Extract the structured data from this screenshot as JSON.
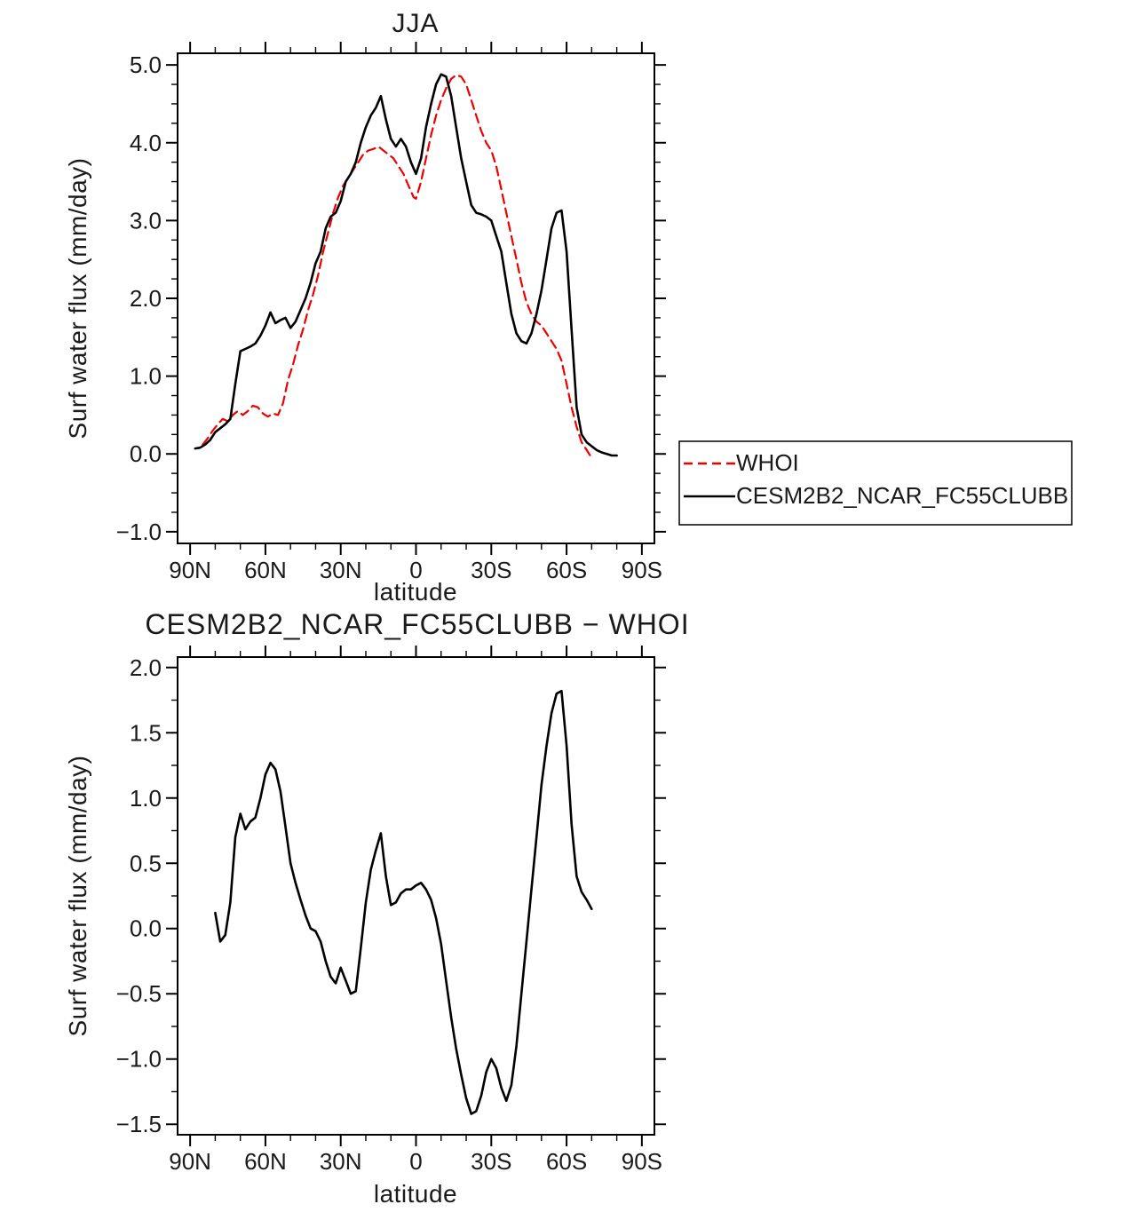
{
  "page": {
    "background": "#ffffff"
  },
  "legend": {
    "position": "right-of-top-chart",
    "entries": [
      {
        "label": "WHOI",
        "color": "#ee0000",
        "style": "dashed"
      },
      {
        "label": "CESM2B2_NCAR_FC55CLUBB",
        "color": "#000000",
        "style": "solid"
      }
    ]
  },
  "chart_data": [
    {
      "type": "line",
      "title": "JJA",
      "xlabel": "latitude",
      "ylabel": "Surf water flux (mm/day)",
      "x_axis": {
        "domain_note": "latitude, 90N (left) to 90S (right)",
        "major_ticks": [
          90,
          60,
          30,
          0,
          -30,
          -60,
          -90
        ],
        "tick_labels": [
          "90N",
          "60N",
          "30N",
          "0",
          "30S",
          "60S",
          "90S"
        ],
        "minor_step": 10
      },
      "y_axis": {
        "min": -1.0,
        "max": 5.0,
        "major_ticks": [
          -1.0,
          0.0,
          1.0,
          2.0,
          3.0,
          4.0,
          5.0
        ],
        "tick_labels": [
          "−1.0",
          "0.0",
          "1.0",
          "2.0",
          "3.0",
          "4.0",
          "5.0"
        ],
        "minor_step": 0.25
      },
      "series": [
        {
          "name": "WHOI",
          "color": "#ee0000",
          "style": "dashed",
          "x": [
            85,
            83,
            81,
            79,
            77,
            75,
            73,
            71,
            69,
            67,
            65,
            63,
            61,
            59,
            57,
            55,
            53,
            51,
            49,
            47,
            45,
            43,
            41,
            39,
            37,
            35,
            33,
            31,
            29,
            27,
            25,
            23,
            21,
            19,
            17,
            15,
            13,
            11,
            9,
            7,
            5,
            3,
            1,
            0,
            -2,
            -4,
            -6,
            -8,
            -10,
            -12,
            -14,
            -16,
            -18,
            -20,
            -22,
            -24,
            -26,
            -28,
            -30,
            -32,
            -34,
            -36,
            -38,
            -40,
            -42,
            -44,
            -46,
            -48,
            -50,
            -52,
            -54,
            -56,
            -58,
            -60,
            -62,
            -64,
            -66,
            -68,
            -70
          ],
          "y": [
            0.12,
            0.2,
            0.3,
            0.38,
            0.45,
            0.42,
            0.5,
            0.55,
            0.5,
            0.55,
            0.62,
            0.6,
            0.52,
            0.48,
            0.52,
            0.5,
            0.65,
            0.95,
            1.15,
            1.4,
            1.6,
            1.85,
            2.05,
            2.3,
            2.6,
            2.85,
            3.1,
            3.3,
            3.45,
            3.55,
            3.65,
            3.75,
            3.85,
            3.9,
            3.92,
            3.95,
            3.9,
            3.85,
            3.8,
            3.7,
            3.6,
            3.45,
            3.3,
            3.28,
            3.5,
            3.8,
            4.1,
            4.35,
            4.55,
            4.7,
            4.82,
            4.87,
            4.85,
            4.75,
            4.55,
            4.35,
            4.15,
            4.0,
            3.9,
            3.7,
            3.4,
            3.1,
            2.8,
            2.5,
            2.2,
            1.95,
            1.8,
            1.7,
            1.65,
            1.55,
            1.45,
            1.35,
            1.2,
            0.9,
            0.6,
            0.35,
            0.15,
            0.05,
            -0.05
          ]
        },
        {
          "name": "CESM2B2_NCAR_FC55CLUBB",
          "color": "#000000",
          "style": "solid",
          "x": [
            88,
            86,
            84,
            82,
            80,
            78,
            76,
            74,
            72,
            70,
            68,
            66,
            64,
            62,
            60,
            58,
            56,
            54,
            52,
            50,
            48,
            46,
            44,
            42,
            40,
            38,
            36,
            34,
            32,
            30,
            28,
            26,
            24,
            22,
            20,
            18,
            16,
            14,
            12,
            10,
            8,
            6,
            4,
            2,
            0,
            -2,
            -4,
            -6,
            -8,
            -10,
            -12,
            -14,
            -16,
            -18,
            -20,
            -22,
            -24,
            -26,
            -28,
            -30,
            -32,
            -34,
            -36,
            -38,
            -40,
            -42,
            -44,
            -46,
            -48,
            -50,
            -52,
            -54,
            -56,
            -58,
            -60,
            -62,
            -64,
            -66,
            -68,
            -70,
            -72,
            -74,
            -76,
            -78,
            -80
          ],
          "y": [
            0.07,
            0.08,
            0.12,
            0.18,
            0.28,
            0.33,
            0.38,
            0.45,
            0.9,
            1.32,
            1.35,
            1.38,
            1.42,
            1.52,
            1.65,
            1.82,
            1.68,
            1.72,
            1.75,
            1.62,
            1.7,
            1.85,
            2.0,
            2.2,
            2.45,
            2.6,
            2.9,
            3.05,
            3.1,
            3.25,
            3.5,
            3.6,
            3.75,
            4.0,
            4.2,
            4.35,
            4.45,
            4.6,
            4.3,
            4.05,
            3.95,
            4.05,
            3.95,
            3.75,
            3.6,
            3.8,
            4.2,
            4.5,
            4.75,
            4.88,
            4.85,
            4.6,
            4.2,
            3.8,
            3.5,
            3.2,
            3.1,
            3.08,
            3.05,
            3.0,
            2.8,
            2.6,
            2.2,
            1.8,
            1.55,
            1.45,
            1.42,
            1.55,
            1.8,
            2.1,
            2.5,
            2.9,
            3.1,
            3.13,
            2.6,
            1.6,
            0.6,
            0.25,
            0.15,
            0.1,
            0.05,
            0.02,
            0.0,
            -0.02,
            -0.02
          ]
        }
      ]
    },
    {
      "type": "line",
      "title": "CESM2B2_NCAR_FC55CLUBB − WHOI",
      "xlabel": "latitude",
      "ylabel": "Surf water flux (mm/day)",
      "x_axis": {
        "domain_note": "latitude, 90N (left) to 90S (right)",
        "major_ticks": [
          90,
          60,
          30,
          0,
          -30,
          -60,
          -90
        ],
        "tick_labels": [
          "90N",
          "60N",
          "30N",
          "0",
          "30S",
          "60S",
          "90S"
        ],
        "minor_step": 10
      },
      "y_axis": {
        "min": -1.5,
        "max": 2.0,
        "major_ticks": [
          -1.5,
          -1.0,
          -0.5,
          0.0,
          0.5,
          1.0,
          1.5,
          2.0
        ],
        "tick_labels": [
          "−1.5",
          "−1.0",
          "−0.5",
          "0.0",
          "0.5",
          "1.0",
          "1.5",
          "2.0"
        ],
        "minor_step": 0.25
      },
      "series": [
        {
          "name": "CESM2B2_NCAR_FC55CLUBB minus WHOI",
          "color": "#000000",
          "style": "solid",
          "x": [
            80,
            78,
            76,
            74,
            72,
            70,
            68,
            66,
            64,
            62,
            60,
            58,
            56,
            54,
            52,
            50,
            48,
            46,
            44,
            42,
            40,
            38,
            36,
            34,
            32,
            30,
            28,
            26,
            24,
            22,
            20,
            18,
            16,
            14,
            12,
            10,
            8,
            6,
            4,
            2,
            0,
            -2,
            -4,
            -6,
            -8,
            -10,
            -12,
            -14,
            -16,
            -18,
            -20,
            -22,
            -24,
            -26,
            -28,
            -30,
            -32,
            -34,
            -36,
            -38,
            -40,
            -42,
            -44,
            -46,
            -48,
            -50,
            -52,
            -54,
            -56,
            -58,
            -60,
            -62,
            -64,
            -66,
            -68,
            -70
          ],
          "y": [
            0.12,
            -0.1,
            -0.05,
            0.2,
            0.7,
            0.88,
            0.76,
            0.82,
            0.85,
            1.0,
            1.18,
            1.27,
            1.22,
            1.05,
            0.78,
            0.5,
            0.35,
            0.22,
            0.1,
            0.0,
            -0.02,
            -0.1,
            -0.25,
            -0.37,
            -0.42,
            -0.3,
            -0.4,
            -0.5,
            -0.48,
            -0.15,
            0.2,
            0.45,
            0.6,
            0.73,
            0.4,
            0.18,
            0.2,
            0.27,
            0.3,
            0.3,
            0.33,
            0.35,
            0.3,
            0.22,
            0.08,
            -0.12,
            -0.4,
            -0.68,
            -0.92,
            -1.12,
            -1.3,
            -1.42,
            -1.4,
            -1.28,
            -1.1,
            -1.0,
            -1.07,
            -1.22,
            -1.32,
            -1.2,
            -0.9,
            -0.5,
            -0.1,
            0.3,
            0.7,
            1.1,
            1.4,
            1.65,
            1.8,
            1.82,
            1.4,
            0.8,
            0.4,
            0.28,
            0.22,
            0.15
          ]
        }
      ]
    }
  ]
}
